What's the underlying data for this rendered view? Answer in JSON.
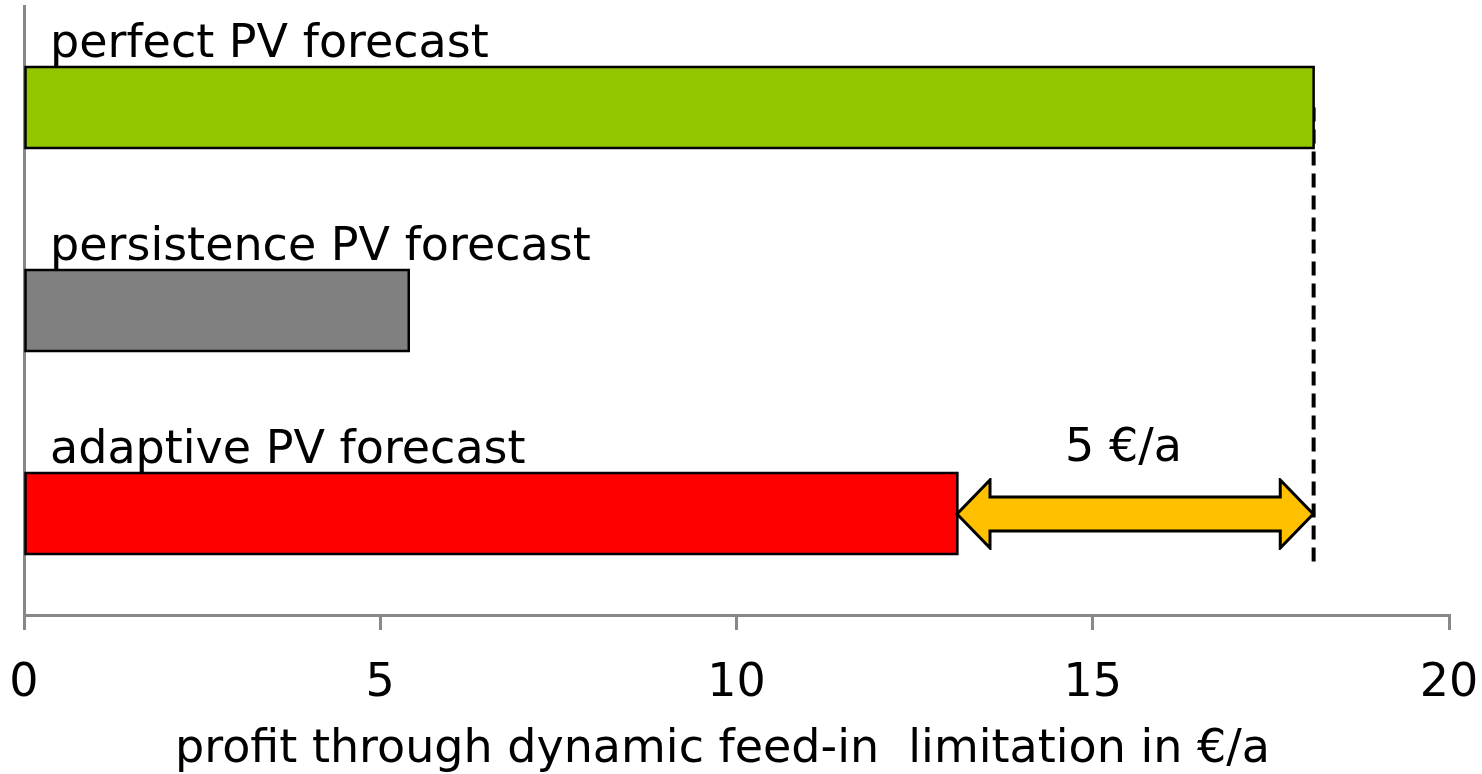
{
  "chart_data": {
    "type": "bar",
    "orientation": "horizontal",
    "categories": [
      "perfect PV forecast",
      "persistence PV forecast",
      "adaptive PV forecast"
    ],
    "values": [
      18.1,
      5.4,
      13.1
    ],
    "colors": [
      "#94c600",
      "#808080",
      "#ff0000"
    ],
    "xlabel": "profit through dynamic feed-in  limitation in €/a",
    "xlim": [
      0,
      20
    ],
    "xticks": [
      0,
      5,
      10,
      15,
      20
    ],
    "ref_lines": [
      {
        "axis": "x",
        "value": 18.1,
        "line_style": "dashed",
        "color": "#000000"
      }
    ],
    "annotations": [
      "5 €/a"
    ]
  }
}
